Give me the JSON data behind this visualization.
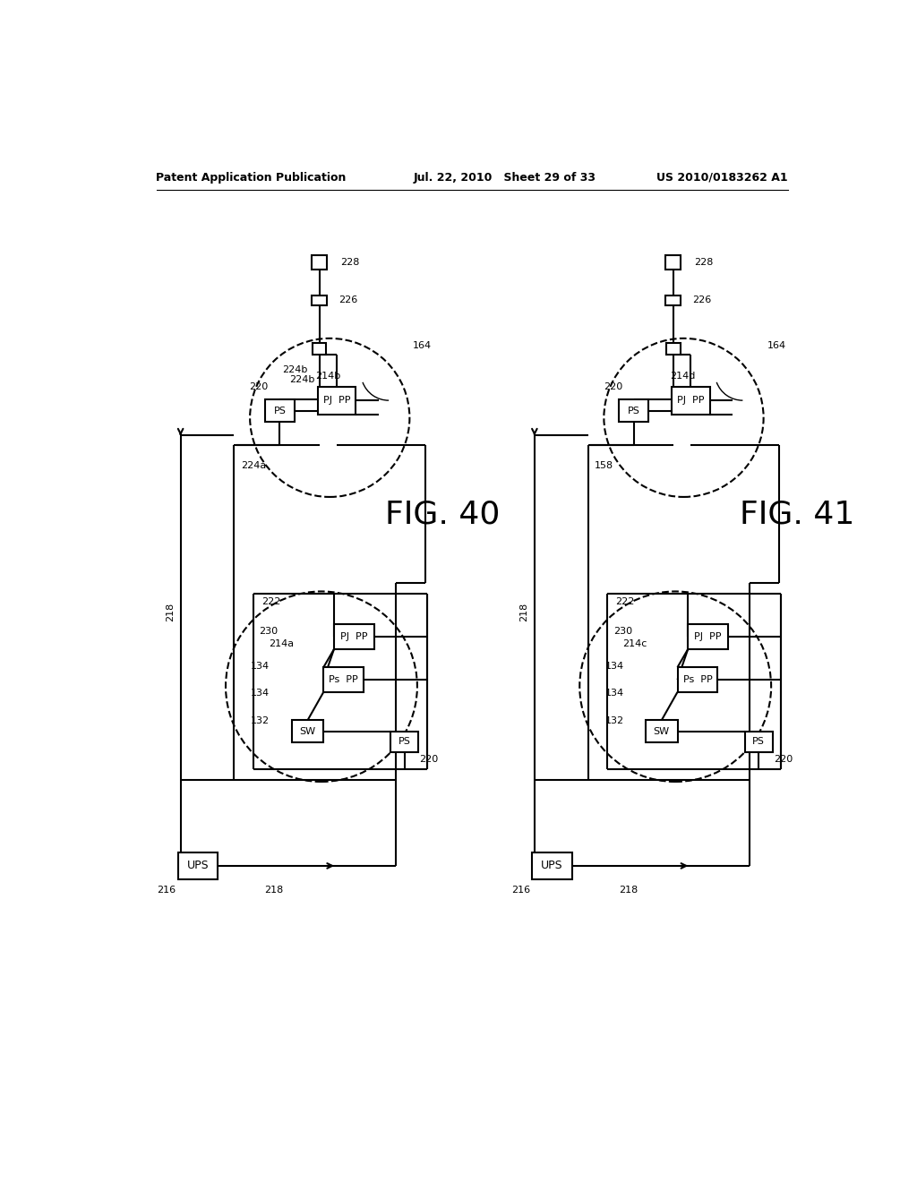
{
  "bg_color": "#ffffff",
  "header_left": "Patent Application Publication",
  "header_mid": "Jul. 22, 2010   Sheet 29 of 33",
  "header_right": "US 2010/0183262 A1",
  "fig40_label": "FIG. 40",
  "fig41_label": "FIG. 41"
}
